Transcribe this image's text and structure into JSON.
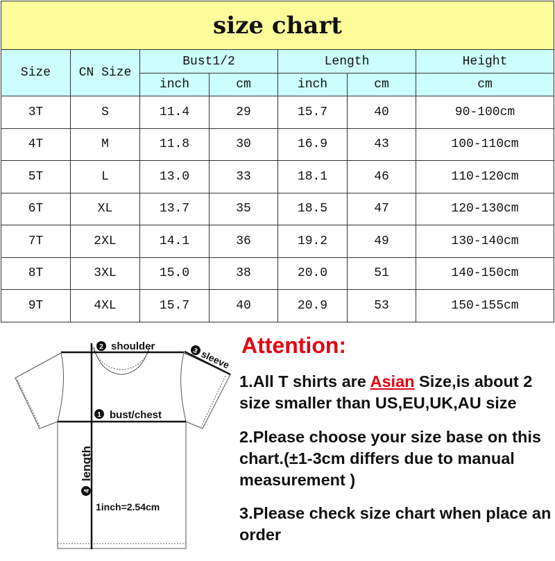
{
  "title": "size chart",
  "headers": {
    "size": "Size",
    "cn_size": "CN Size",
    "bust": "Bust1/2",
    "length": "Length",
    "height": "Height",
    "inch": "inch",
    "cm": "cm"
  },
  "rows": [
    [
      "3T",
      "S",
      "11.4",
      "29",
      "15.7",
      "40",
      "90-100cm"
    ],
    [
      "4T",
      "M",
      "11.8",
      "30",
      "16.9",
      "43",
      "100-110cm"
    ],
    [
      "5T",
      "L",
      "13.0",
      "33",
      "18.1",
      "46",
      "110-120cm"
    ],
    [
      "6T",
      "XL",
      "13.7",
      "35",
      "18.5",
      "47",
      "120-130cm"
    ],
    [
      "7T",
      "2XL",
      "14.1",
      "36",
      "19.2",
      "49",
      "130-140cm"
    ],
    [
      "8T",
      "3XL",
      "15.0",
      "38",
      "20.0",
      "51",
      "140-150cm"
    ],
    [
      "9T",
      "4XL",
      "15.7",
      "40",
      "20.9",
      "53",
      "150-155cm"
    ]
  ],
  "diagram": {
    "shoulder": "shoulder",
    "sleeve": "sleeve",
    "bust": "bust/chest",
    "length": "length",
    "conversion": "1inch=2.54cm",
    "n1": "1",
    "n2": "2",
    "n3": "3",
    "n4": "4"
  },
  "attention": {
    "title": "Attention:",
    "note1_pre": "1.All T shirts are ",
    "note1_highlight": "Asian",
    "note1_post": " Size,is about 2 size smaller than US,EU,UK,AU size",
    "note2": "2.Please choose your size base on this chart.(±1-3cm differs due to manual measurement )",
    "note3": "3.Please check size chart when place an order"
  },
  "colors": {
    "title_bg": "#fdfc9b",
    "header_bg": "#ccfffe",
    "accent": "#e60012"
  }
}
